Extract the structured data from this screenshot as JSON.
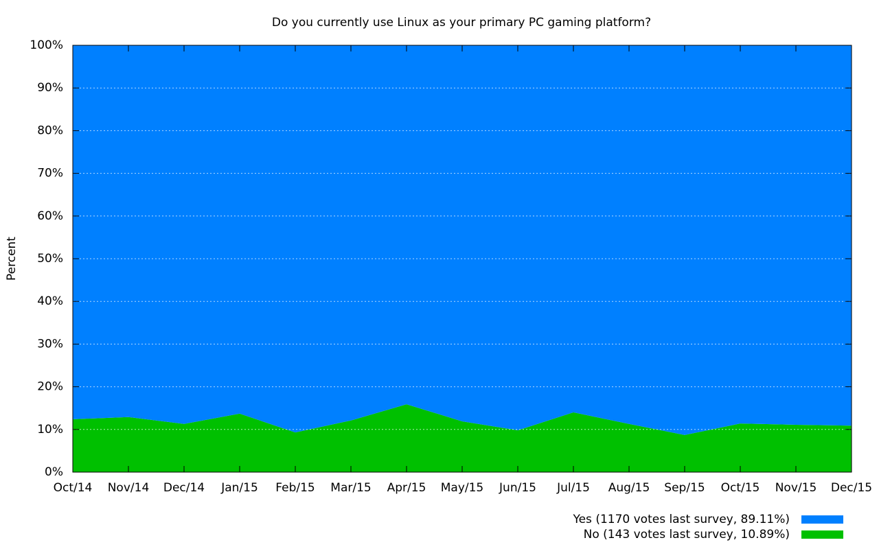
{
  "chart_data": {
    "type": "stacked_area",
    "title": "Do you currently use Linux as your primary PC gaming platform?",
    "y_label": "Percent",
    "categories": [
      "Oct/14",
      "Nov/14",
      "Dec/14",
      "Jan/15",
      "Feb/15",
      "Mar/15",
      "Apr/15",
      "May/15",
      "Jun/15",
      "Jul/15",
      "Aug/15",
      "Sep/15",
      "Oct/15",
      "Nov/15",
      "Dec/15"
    ],
    "series": [
      {
        "name": "Yes (1170 votes last survey, 89.11%)",
        "color": "#0080ff",
        "values": [
          87.6,
          87.1,
          88.7,
          86.3,
          90.7,
          87.9,
          84.1,
          88.1,
          90.2,
          86.0,
          88.7,
          91.3,
          88.6,
          88.9,
          89.11
        ]
      },
      {
        "name": "No (143 votes last survey, 10.89%)",
        "color": "#00c000",
        "values": [
          12.4,
          12.9,
          11.3,
          13.7,
          9.3,
          12.1,
          15.9,
          11.9,
          9.8,
          14.0,
          11.3,
          8.7,
          11.4,
          11.1,
          10.89
        ]
      }
    ],
    "ylim": [
      0,
      100
    ],
    "yticks": [
      {
        "value": 0,
        "label": "0%"
      },
      {
        "value": 10,
        "label": "10%"
      },
      {
        "value": 20,
        "label": "20%"
      },
      {
        "value": 30,
        "label": "30%"
      },
      {
        "value": 40,
        "label": "40%"
      },
      {
        "value": 50,
        "label": "50%"
      },
      {
        "value": 60,
        "label": "60%"
      },
      {
        "value": 70,
        "label": "70%"
      },
      {
        "value": 80,
        "label": "80%"
      },
      {
        "value": 90,
        "label": "90%"
      },
      {
        "value": 100,
        "label": "100%"
      }
    ],
    "grid": true,
    "legend": "bottom-right"
  }
}
